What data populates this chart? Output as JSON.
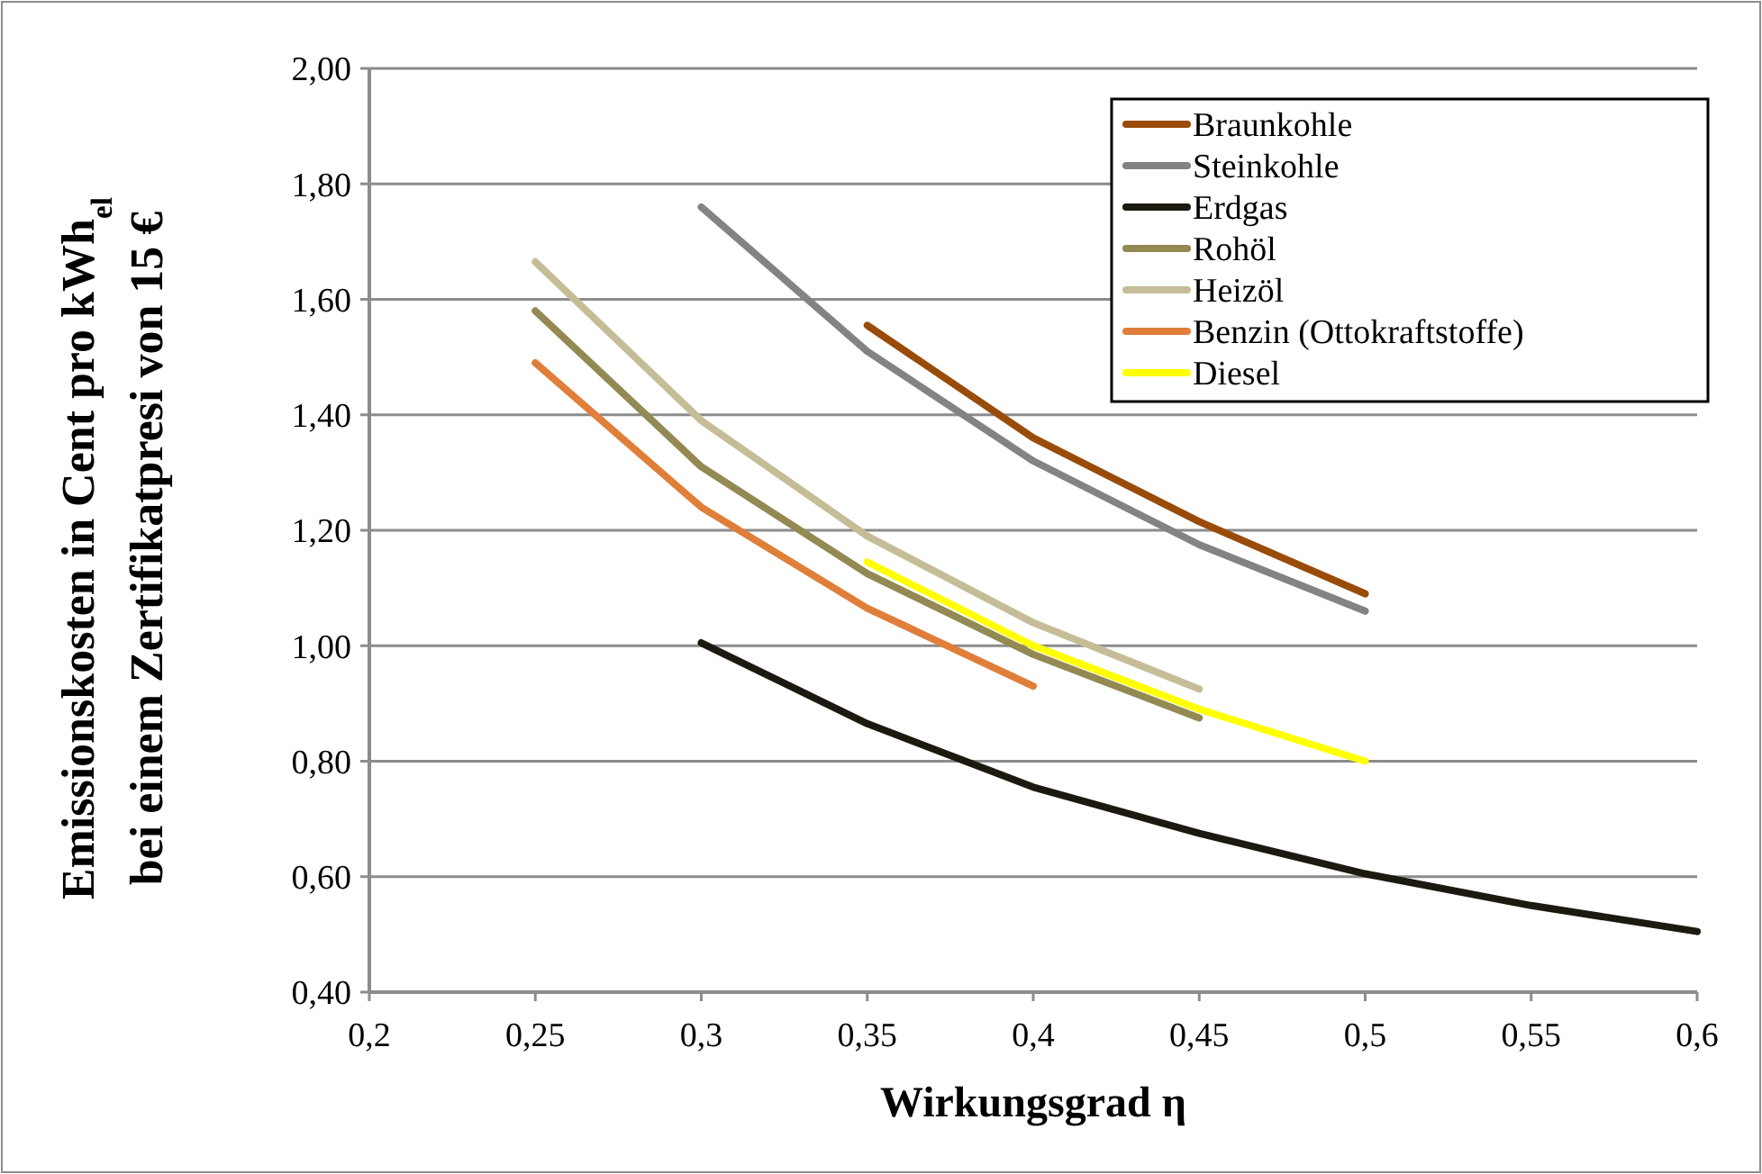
{
  "chart_data": {
    "type": "line",
    "xlabel": "Wirkungsgrad η",
    "ylabel": "Emissionskosten in Cent pro kWh$_{el}$\nbei einem Zertifikatpresi von 15 €",
    "xlim": [
      0.2,
      0.6
    ],
    "xticks": [
      {
        "value": 0.2,
        "label": "0,2"
      },
      {
        "value": 0.25,
        "label": "0,25"
      },
      {
        "value": 0.3,
        "label": "0,3"
      },
      {
        "value": 0.35,
        "label": "0,35"
      },
      {
        "value": 0.4,
        "label": "0,4"
      },
      {
        "value": 0.45,
        "label": "0,45"
      },
      {
        "value": 0.5,
        "label": "0,5"
      },
      {
        "value": 0.55,
        "label": "0,55"
      },
      {
        "value": 0.6,
        "label": "0,6"
      }
    ],
    "ylim": [
      0.4,
      2.0
    ],
    "yticks": [
      {
        "value": 0.4,
        "label": "0,40"
      },
      {
        "value": 0.6,
        "label": "0,60"
      },
      {
        "value": 0.8,
        "label": "0,80"
      },
      {
        "value": 1.0,
        "label": "1,00"
      },
      {
        "value": 1.2,
        "label": "1,20"
      },
      {
        "value": 1.4,
        "label": "1,40"
      },
      {
        "value": 1.6,
        "label": "1,60"
      },
      {
        "value": 1.8,
        "label": "1,80"
      },
      {
        "value": 2.0,
        "label": "2,00"
      }
    ],
    "grid": "y",
    "legend": "top right",
    "marker": "none",
    "line_style": "solid",
    "series": [
      {
        "name": "Braunkohle",
        "color": "#994c0a",
        "x": [
          0.35,
          0.4,
          0.45,
          0.5
        ],
        "values": [
          1.555,
          1.36,
          1.215,
          1.09
        ]
      },
      {
        "name": "Steinkohle",
        "color": "#838383",
        "x": [
          0.3,
          0.35,
          0.4,
          0.45,
          0.5
        ],
        "values": [
          1.76,
          1.51,
          1.32,
          1.175,
          1.06
        ]
      },
      {
        "name": "Erdgas",
        "color": "#1c1a10",
        "x": [
          0.3,
          0.35,
          0.4,
          0.45,
          0.5,
          0.55,
          0.6
        ],
        "values": [
          1.005,
          0.865,
          0.755,
          0.675,
          0.605,
          0.55,
          0.505
        ]
      },
      {
        "name": "Rohöl",
        "color": "#938953",
        "x": [
          0.25,
          0.3,
          0.35,
          0.4,
          0.45
        ],
        "values": [
          1.58,
          1.31,
          1.125,
          0.985,
          0.875
        ]
      },
      {
        "name": "Heizöl",
        "color": "#c4bd97",
        "x": [
          0.25,
          0.3,
          0.35,
          0.4,
          0.45
        ],
        "values": [
          1.665,
          1.39,
          1.19,
          1.04,
          0.925
        ]
      },
      {
        "name": "Benzin (Ottokraftstoffe)",
        "color": "#e07f3a",
        "x": [
          0.25,
          0.3,
          0.35,
          0.4
        ],
        "values": [
          1.49,
          1.24,
          1.065,
          0.93
        ]
      },
      {
        "name": "Diesel",
        "color": "#ffff00",
        "x": [
          0.35,
          0.4,
          0.45,
          0.5
        ],
        "values": [
          1.145,
          1.0,
          0.89,
          0.8
        ]
      }
    ]
  }
}
